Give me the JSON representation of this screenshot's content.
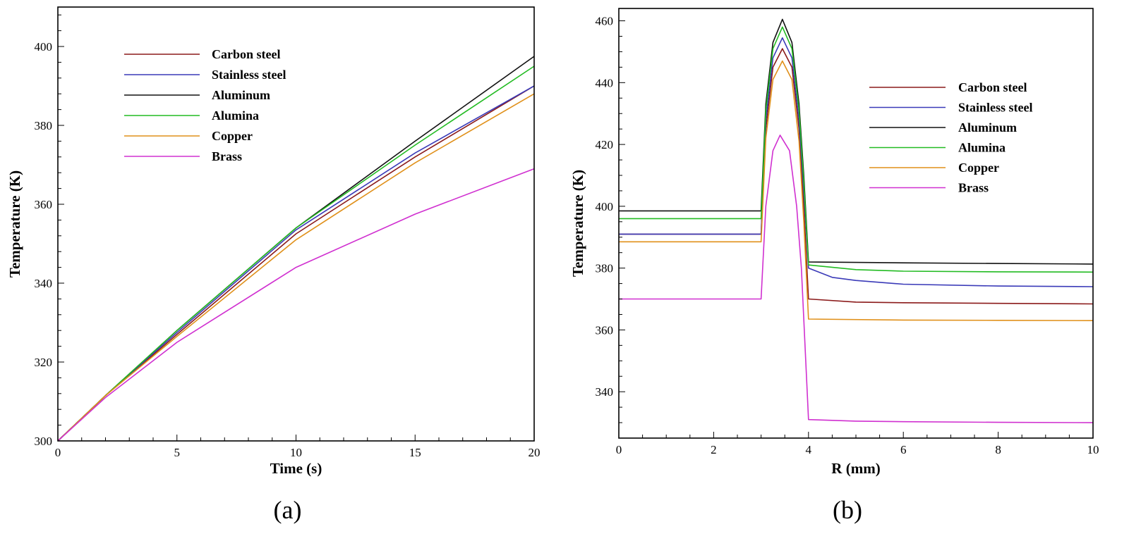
{
  "chart_data": [
    {
      "type": "line",
      "panel_label": "(a)",
      "xlabel": "Time (s)",
      "ylabel": "Temperature (K)",
      "xlim": [
        0,
        20
      ],
      "ylim": [
        300,
        410
      ],
      "x_ticks": [
        0,
        5,
        10,
        15,
        20
      ],
      "y_ticks": [
        300,
        320,
        340,
        360,
        380,
        400
      ],
      "legend_position": "top-left",
      "grid": false,
      "series": [
        {
          "name": "Carbon steel",
          "color": "#8b1a1a",
          "x": [
            0,
            2,
            5,
            10,
            15,
            20
          ],
          "y": [
            300,
            311.5,
            327,
            352.5,
            372,
            390
          ]
        },
        {
          "name": "Stainless steel",
          "color": "#3a3ab8",
          "x": [
            0,
            2,
            5,
            10,
            15,
            20
          ],
          "y": [
            300,
            311.5,
            327.5,
            353.5,
            373,
            390
          ]
        },
        {
          "name": "Aluminum",
          "color": "#111111",
          "x": [
            0,
            2,
            5,
            10,
            15,
            20
          ],
          "y": [
            300,
            311.5,
            328,
            354,
            376,
            397.5
          ]
        },
        {
          "name": "Alumina",
          "color": "#22bb22",
          "x": [
            0,
            2,
            5,
            10,
            15,
            20
          ],
          "y": [
            300,
            311.5,
            328,
            354,
            375,
            395
          ]
        },
        {
          "name": "Copper",
          "color": "#e0901a",
          "x": [
            0,
            2,
            5,
            10,
            15,
            20
          ],
          "y": [
            300,
            311.5,
            326.5,
            351,
            370.5,
            388
          ]
        },
        {
          "name": "Brass",
          "color": "#d030d0",
          "x": [
            0,
            2,
            5,
            10,
            15,
            20
          ],
          "y": [
            300,
            311,
            325,
            344,
            357.5,
            369
          ]
        }
      ]
    },
    {
      "type": "line",
      "panel_label": "(b)",
      "xlabel": "R (mm)",
      "ylabel": "Temperature (K)",
      "xlim": [
        0,
        10
      ],
      "ylim": [
        325,
        464
      ],
      "x_ticks": [
        0,
        2,
        4,
        6,
        8,
        10
      ],
      "y_ticks": [
        340,
        360,
        380,
        400,
        420,
        440,
        460
      ],
      "legend_position": "right",
      "grid": false,
      "series": [
        {
          "name": "Carbon steel",
          "color": "#8b1a1a",
          "x": [
            0,
            3,
            3.1,
            3.25,
            3.45,
            3.65,
            3.8,
            3.9,
            4,
            5,
            6,
            8,
            10
          ],
          "y": [
            391,
            391,
            425,
            445,
            451,
            445,
            425,
            400,
            370,
            369,
            368.8,
            368.6,
            368.4
          ]
        },
        {
          "name": "Stainless steel",
          "color": "#3a3ab8",
          "x": [
            0,
            3,
            3.1,
            3.25,
            3.45,
            3.65,
            3.8,
            3.9,
            4,
            4.5,
            5,
            6,
            8,
            10
          ],
          "y": [
            391,
            391,
            428,
            448,
            454.5,
            448,
            428,
            405,
            380,
            377,
            376,
            374.8,
            374.2,
            374
          ]
        },
        {
          "name": "Aluminum",
          "color": "#111111",
          "x": [
            0,
            3,
            3.1,
            3.25,
            3.45,
            3.65,
            3.8,
            3.9,
            4,
            6,
            8,
            10
          ],
          "y": [
            398.5,
            398.5,
            433,
            453,
            460.5,
            453,
            433,
            410,
            382,
            381.7,
            381.5,
            381.3
          ]
        },
        {
          "name": "Alumina",
          "color": "#22bb22",
          "x": [
            0,
            3,
            3.1,
            3.25,
            3.45,
            3.65,
            3.8,
            3.9,
            4,
            5,
            6,
            8,
            10
          ],
          "y": [
            396,
            396,
            431,
            451,
            458,
            451,
            431,
            408,
            381,
            379.5,
            379,
            378.8,
            378.7
          ]
        },
        {
          "name": "Copper",
          "color": "#e0901a",
          "x": [
            0,
            3,
            3.1,
            3.25,
            3.45,
            3.65,
            3.8,
            3.9,
            4,
            6,
            8,
            10
          ],
          "y": [
            388.5,
            388.5,
            422,
            441,
            447,
            441,
            421,
            395,
            363.5,
            363.2,
            363.1,
            363
          ]
        },
        {
          "name": "Brass",
          "color": "#d030d0",
          "x": [
            0,
            3,
            3.1,
            3.25,
            3.4,
            3.6,
            3.75,
            3.85,
            4,
            5,
            6,
            8,
            10
          ],
          "y": [
            370,
            370,
            400,
            418,
            423,
            418,
            400,
            380,
            331,
            330.5,
            330.3,
            330.1,
            330
          ]
        }
      ]
    }
  ]
}
